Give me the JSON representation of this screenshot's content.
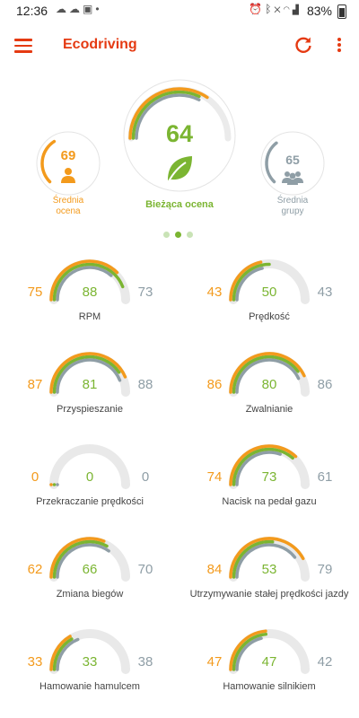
{
  "status_bar": {
    "time": "12:36",
    "battery": "83%",
    "left_icons": [
      "weather-icon",
      "cloud-icon",
      "image-icon",
      "dot-icon"
    ],
    "right_icons": [
      "alarm-icon",
      "bluetooth-icon",
      "mute-icon",
      "wifi-icon",
      "signal-icon"
    ]
  },
  "app_bar": {
    "title": "Ecodriving",
    "accent": "#e53a12"
  },
  "score": {
    "my_average": {
      "value": "69",
      "label_line1": "Średnia",
      "label_line2": "ocena",
      "color": "#f39a1c"
    },
    "current": {
      "value": "64",
      "label": "Bieżąca ocena",
      "color": "#7bb532"
    },
    "group_average": {
      "value": "65",
      "label_line1": "Średnia",
      "label_line2": "grupy",
      "color": "#8f9ea6"
    },
    "pages": 3,
    "active_page": 1
  },
  "colors": {
    "user": "#f39a1c",
    "current": "#7bb532",
    "group": "#8f9ea6",
    "track": "#e9e9e9"
  },
  "metrics": [
    {
      "label": "RPM",
      "user": "75",
      "current": "88",
      "group": "73"
    },
    {
      "label": "Prędkość",
      "user": "43",
      "current": "50",
      "group": "43"
    },
    {
      "label": "Przyspieszanie",
      "user": "87",
      "current": "81",
      "group": "88"
    },
    {
      "label": "Zwalnianie",
      "user": "86",
      "current": "80",
      "group": "86"
    },
    {
      "label": "Przekraczanie prędkości",
      "user": "0",
      "current": "0",
      "group": "0"
    },
    {
      "label": "Nacisk na pedał gazu",
      "user": "74",
      "current": "73",
      "group": "61"
    },
    {
      "label": "Zmiana biegów",
      "user": "62",
      "current": "66",
      "group": "70"
    },
    {
      "label": "Utrzymywanie stałej prędkości jazdy",
      "user": "84",
      "current": "53",
      "group": "79"
    },
    {
      "label": "Hamowanie hamulcem",
      "user": "33",
      "current": "33",
      "group": "38"
    },
    {
      "label": "Hamowanie silnikiem",
      "user": "47",
      "current": "47",
      "group": "42"
    }
  ]
}
